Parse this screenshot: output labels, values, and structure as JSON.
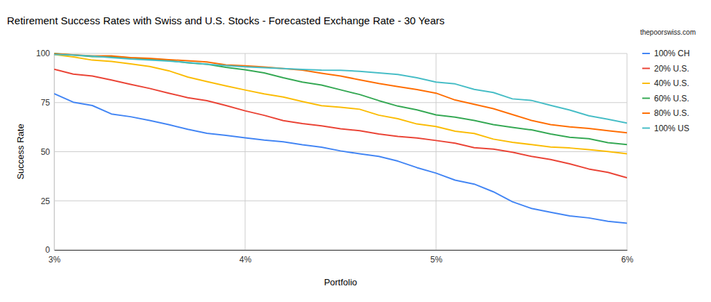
{
  "chart_data": {
    "type": "line",
    "title": "Retirement Success Rates with Swiss and U.S. Stocks - Forecasted Exchange Rate - 30 Years",
    "annotations": [
      "thepoorswiss.com"
    ],
    "x_label": "Portfolio",
    "y_label": "Success Rate",
    "x": [
      3,
      3.1,
      3.2,
      3.3,
      3.4,
      3.5,
      3.6,
      3.7,
      3.8,
      3.9,
      4,
      4.1,
      4.2,
      4.3,
      4.4,
      4.5,
      4.6,
      4.7,
      4.8,
      4.9,
      5,
      5.1,
      5.2,
      5.3,
      5.4,
      5.5,
      5.6,
      5.7,
      5.8,
      5.9,
      6
    ],
    "series": [
      {
        "name": "100% CH",
        "color": "#4285f4",
        "values": [
          79.5,
          75.2,
          73.5,
          69.2,
          67.8,
          65.9,
          63.8,
          61.4,
          59.4,
          58.3,
          57.1,
          55.9,
          55.0,
          53.5,
          52.3,
          50.4,
          48.9,
          47.6,
          45.2,
          41.9,
          39.1,
          35.5,
          33.5,
          29.6,
          24.5,
          21.1,
          19.2,
          17.3,
          16.3,
          14.6,
          13.6
        ]
      },
      {
        "name": "20% U.S.",
        "color": "#ea4335",
        "values": [
          92.0,
          89.5,
          88.5,
          86.5,
          84.3,
          82.2,
          79.8,
          77.5,
          76.0,
          73.5,
          70.8,
          68.5,
          65.8,
          64.3,
          63.2,
          61.7,
          60.7,
          59.0,
          57.8,
          57.0,
          55.7,
          54.3,
          52.0,
          51.3,
          49.7,
          47.6,
          46.0,
          43.8,
          41.2,
          39.5,
          36.7
        ]
      },
      {
        "name": "40% U.S.",
        "color": "#fbbc04",
        "values": [
          99.5,
          98.2,
          96.6,
          95.9,
          94.7,
          93.4,
          91.2,
          88.0,
          85.7,
          83.5,
          81.4,
          79.4,
          77.8,
          75.5,
          73.4,
          72.6,
          71.6,
          68.6,
          66.8,
          64.1,
          62.8,
          60.4,
          59.3,
          56.4,
          54.8,
          53.6,
          52.4,
          51.9,
          51.1,
          50.1,
          48.9
        ]
      },
      {
        "name": "60% U.S.",
        "color": "#34a853",
        "values": [
          100.0,
          99.2,
          98.4,
          98.3,
          97.8,
          97.0,
          96.4,
          95.2,
          94.5,
          92.9,
          91.7,
          90.1,
          87.6,
          85.4,
          83.9,
          81.5,
          79.1,
          76.0,
          73.2,
          71.3,
          68.7,
          67.6,
          65.9,
          63.8,
          62.4,
          61.1,
          59.0,
          57.3,
          56.6,
          54.6,
          53.6
        ]
      },
      {
        "name": "80% U.S.",
        "color": "#ff6d01",
        "values": [
          99.8,
          99.3,
          98.8,
          98.8,
          97.9,
          97.5,
          96.8,
          96.3,
          95.7,
          94.2,
          93.7,
          93.1,
          92.3,
          91.5,
          89.9,
          88.5,
          86.6,
          84.7,
          83.1,
          81.6,
          79.8,
          76.3,
          74.1,
          71.9,
          68.9,
          65.9,
          63.8,
          62.6,
          61.8,
          60.7,
          59.6
        ]
      },
      {
        "name": "100% US",
        "color": "#46bdc6",
        "values": [
          99.5,
          99.2,
          98.7,
          97.9,
          97.2,
          96.6,
          96.1,
          95.4,
          94.5,
          93.8,
          93.2,
          92.8,
          92.3,
          91.9,
          91.5,
          91.4,
          90.9,
          90.1,
          89.3,
          87.6,
          85.4,
          84.5,
          81.7,
          80.1,
          76.9,
          76.1,
          73.6,
          71.2,
          68.3,
          66.5,
          64.6
        ]
      }
    ],
    "xlim": [
      3,
      6
    ],
    "xticks": [
      {
        "value": 3,
        "label": "3%"
      },
      {
        "value": 4,
        "label": "4%"
      },
      {
        "value": 5,
        "label": "5%"
      },
      {
        "value": 6,
        "label": "6%"
      }
    ],
    "ylim": [
      0,
      100
    ],
    "yticks": [
      0,
      25,
      50,
      75,
      100
    ],
    "grid": true,
    "legend": "right"
  }
}
